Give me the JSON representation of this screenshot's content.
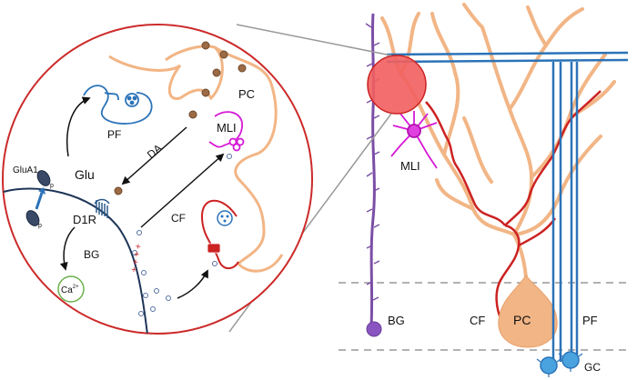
{
  "labels": {
    "pc_inset": "PC",
    "pf_inset": "PF",
    "mli_inset": "MLI",
    "glu": "Glu",
    "glua1": "GluA1",
    "p1": "p",
    "p2": "p",
    "da": "DA",
    "d1r": "D1R",
    "bg_inset": "BG",
    "ca": "Ca",
    "ca_sup": "2+",
    "cf_inset": "CF",
    "plus": "+ + + +",
    "mli": "MLI",
    "bg": "BG",
    "cf": "CF",
    "pc": "PC",
    "pf": "PF",
    "gc": "GC"
  },
  "colors": {
    "purkinje": "#f2b585",
    "bergmann": "#7b4ea6",
    "parallel_fiber": "#2b73b8",
    "climbing_fiber": "#cc2222",
    "mli": "#d61ad6",
    "inset_border": "#cc2a2a",
    "vesicle": "#9c6a45"
  }
}
